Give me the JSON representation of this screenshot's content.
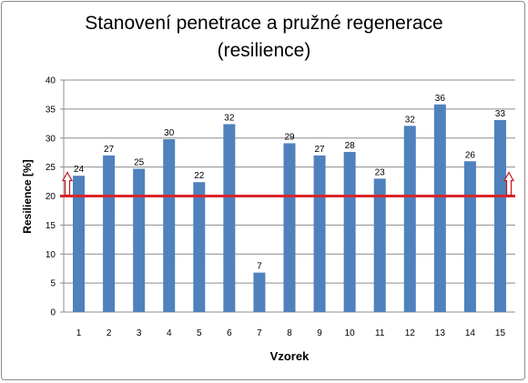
{
  "chart_data": {
    "type": "bar",
    "title_line1": "Stanovení penetrace a pružné regenerace",
    "title_line2": "(resilience)",
    "xlabel": "Vzorek",
    "ylabel": "Resilience [%]",
    "ylim": [
      0,
      40
    ],
    "yticks": [
      0,
      5,
      10,
      15,
      20,
      25,
      30,
      35,
      40
    ],
    "categories": [
      "1",
      "2",
      "3",
      "4",
      "5",
      "6",
      "7",
      "8",
      "9",
      "10",
      "11",
      "12",
      "13",
      "14",
      "15"
    ],
    "values": [
      23.5,
      27,
      24.7,
      29.8,
      22.4,
      32.4,
      6.8,
      29.1,
      27,
      27.6,
      23,
      32.1,
      35.8,
      26,
      33.1
    ],
    "data_labels": [
      "24",
      "27",
      "25",
      "30",
      "22",
      "32",
      "7",
      "29",
      "27",
      "28",
      "23",
      "32",
      "36",
      "26",
      "33"
    ],
    "threshold": 20,
    "grid": true,
    "colors": {
      "bar": "#4f81bd",
      "threshold_line": "#d9262b",
      "arrow": "#c0181e",
      "grid": "#8c8c8c"
    }
  }
}
